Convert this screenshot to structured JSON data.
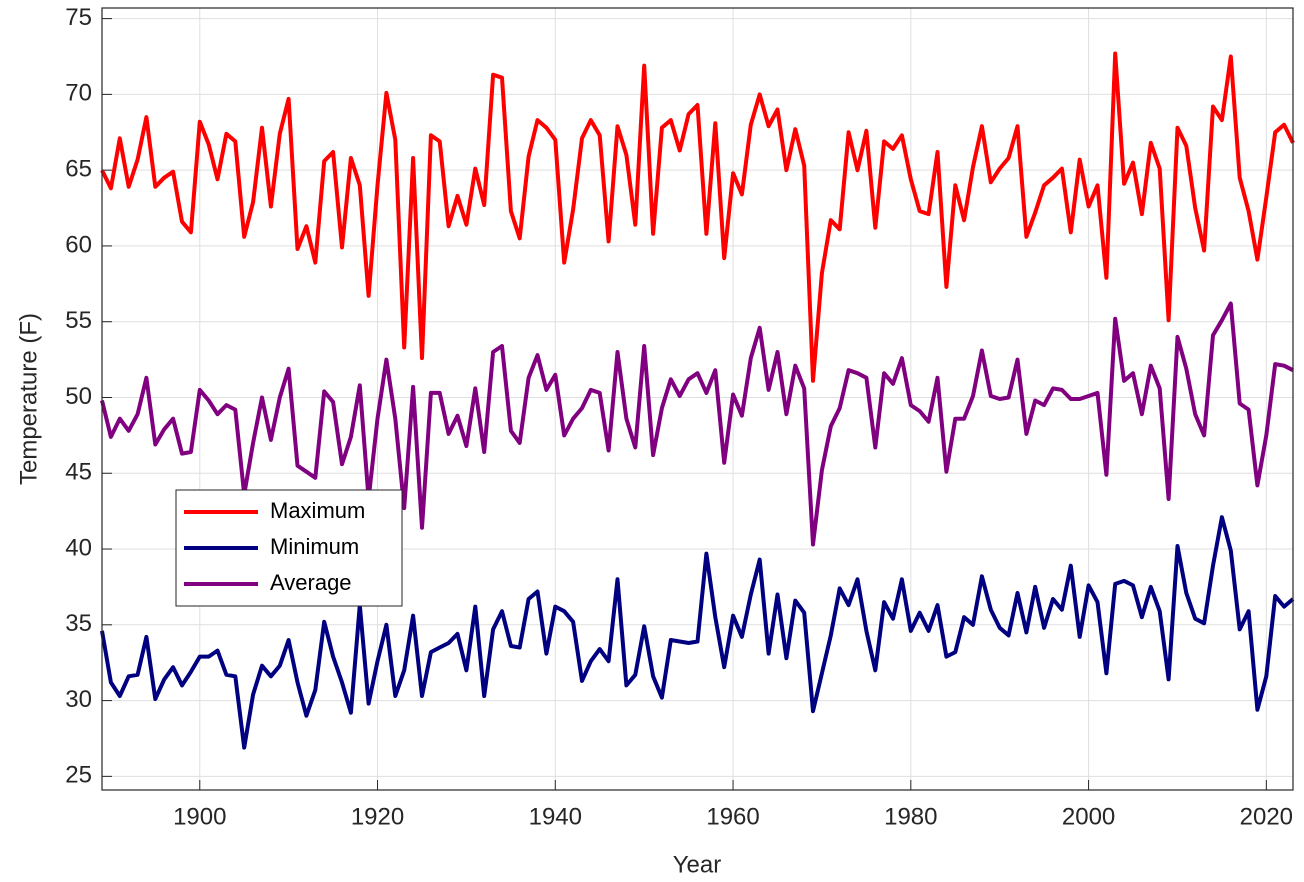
{
  "chart_data": {
    "type": "line",
    "xlabel": "Year",
    "ylabel": "Temperature (F)",
    "x": [
      1889,
      1890,
      1891,
      1892,
      1893,
      1894,
      1895,
      1896,
      1897,
      1898,
      1899,
      1900,
      1901,
      1902,
      1903,
      1904,
      1905,
      1906,
      1907,
      1908,
      1909,
      1910,
      1911,
      1912,
      1913,
      1914,
      1915,
      1916,
      1917,
      1918,
      1919,
      1920,
      1921,
      1922,
      1923,
      1924,
      1925,
      1926,
      1927,
      1928,
      1929,
      1930,
      1931,
      1932,
      1933,
      1934,
      1935,
      1936,
      1937,
      1938,
      1939,
      1940,
      1941,
      1942,
      1943,
      1944,
      1945,
      1946,
      1947,
      1948,
      1949,
      1950,
      1951,
      1952,
      1953,
      1954,
      1955,
      1956,
      1957,
      1958,
      1959,
      1960,
      1961,
      1962,
      1963,
      1964,
      1965,
      1966,
      1967,
      1968,
      1969,
      1970,
      1971,
      1972,
      1973,
      1974,
      1975,
      1976,
      1977,
      1978,
      1979,
      1980,
      1981,
      1982,
      1983,
      1984,
      1985,
      1986,
      1987,
      1988,
      1989,
      1990,
      1991,
      1992,
      1993,
      1994,
      1995,
      1996,
      1997,
      1998,
      1999,
      2000,
      2001,
      2002,
      2003,
      2004,
      2005,
      2006,
      2007,
      2008,
      2009,
      2010,
      2011,
      2012,
      2013,
      2014,
      2015,
      2016,
      2017,
      2018,
      2019,
      2020,
      2021,
      2022,
      2023
    ],
    "series": [
      {
        "name": "Maximum",
        "color": "#ff0000",
        "values": [
          65.0,
          63.8,
          67.1,
          63.9,
          65.7,
          68.5,
          63.9,
          64.5,
          64.9,
          61.6,
          60.9,
          68.2,
          66.7,
          64.4,
          67.4,
          66.9,
          60.6,
          62.9,
          67.8,
          62.6,
          67.4,
          69.7,
          59.8,
          61.3,
          58.9,
          65.6,
          66.2,
          59.9,
          65.8,
          64.0,
          56.7,
          64.0,
          70.1,
          67.0,
          53.3,
          65.8,
          52.6,
          67.3,
          66.9,
          61.3,
          63.3,
          61.4,
          65.1,
          62.7,
          71.3,
          71.1,
          62.3,
          60.5,
          65.9,
          68.3,
          67.8,
          67.0,
          58.9,
          62.4,
          67.1,
          68.3,
          67.3,
          60.3,
          67.9,
          66.0,
          61.4,
          71.9,
          60.8,
          67.8,
          68.3,
          66.3,
          68.7,
          69.3,
          60.8,
          68.1,
          59.2,
          64.8,
          63.4,
          68.0,
          70.0,
          67.9,
          69.0,
          65.0,
          67.7,
          65.3,
          51.1,
          58.2,
          61.7,
          61.1,
          67.5,
          65.0,
          67.6,
          61.2,
          66.9,
          66.4,
          67.3,
          64.4,
          62.3,
          62.1,
          66.2,
          57.3,
          64.0,
          61.7,
          65.2,
          67.9,
          64.2,
          65.1,
          65.8,
          67.9,
          60.6,
          62.2,
          64.0,
          64.5,
          65.1,
          60.9,
          65.7,
          62.6,
          64.0,
          57.9,
          72.7,
          64.1,
          65.5,
          62.1,
          66.8,
          65.1,
          55.1,
          67.8,
          66.6,
          62.5,
          59.7,
          69.2,
          68.3,
          72.5,
          64.5,
          62.3,
          59.1,
          63.2,
          67.5,
          68.0,
          66.8
        ]
      },
      {
        "name": "Minimum",
        "color": "#000080",
        "values": [
          34.6,
          31.2,
          30.3,
          31.6,
          31.7,
          34.2,
          30.1,
          31.4,
          32.2,
          31.0,
          31.9,
          32.9,
          32.9,
          33.3,
          31.7,
          31.6,
          26.9,
          30.4,
          32.3,
          31.6,
          32.3,
          34.0,
          31.2,
          29.0,
          30.7,
          35.2,
          32.9,
          31.2,
          29.2,
          36.3,
          29.8,
          32.6,
          35.0,
          30.3,
          32.0,
          35.6,
          30.3,
          33.2,
          33.5,
          33.8,
          34.4,
          32.0,
          36.2,
          30.3,
          34.7,
          35.9,
          33.6,
          33.5,
          36.7,
          37.2,
          33.1,
          36.2,
          35.9,
          35.2,
          31.3,
          32.6,
          33.4,
          32.6,
          38.0,
          31.0,
          31.7,
          34.9,
          31.6,
          30.2,
          34.0,
          33.9,
          33.8,
          33.9,
          39.7,
          35.5,
          32.2,
          35.6,
          34.2,
          37.0,
          39.3,
          33.1,
          37.0,
          32.8,
          36.6,
          35.8,
          29.3,
          31.8,
          34.3,
          37.4,
          36.3,
          38.0,
          34.6,
          32.0,
          36.5,
          35.4,
          38.0,
          34.6,
          35.8,
          34.6,
          36.3,
          32.9,
          33.2,
          35.5,
          35.0,
          38.2,
          36.0,
          34.8,
          34.3,
          37.1,
          34.5,
          37.5,
          34.8,
          36.7,
          36.0,
          38.9,
          34.2,
          37.6,
          36.5,
          31.8,
          37.7,
          37.9,
          37.6,
          35.5,
          37.5,
          35.9,
          31.4,
          40.2,
          37.1,
          35.4,
          35.1,
          38.9,
          42.1,
          39.9,
          34.7,
          35.9,
          29.4,
          31.6,
          36.9,
          36.2,
          36.7
        ]
      },
      {
        "name": "Average",
        "color": "#800080",
        "values": [
          49.8,
          47.4,
          48.6,
          47.8,
          48.9,
          51.3,
          46.9,
          47.9,
          48.6,
          46.3,
          46.4,
          50.5,
          49.8,
          48.9,
          49.5,
          49.2,
          43.6,
          47.0,
          50.0,
          47.2,
          50.0,
          51.9,
          45.5,
          45.1,
          44.7,
          50.4,
          49.7,
          45.6,
          47.4,
          50.8,
          43.3,
          48.6,
          52.5,
          48.6,
          42.7,
          50.7,
          41.4,
          50.3,
          50.3,
          47.6,
          48.8,
          46.8,
          50.6,
          46.4,
          53.0,
          53.4,
          47.8,
          47.0,
          51.3,
          52.8,
          50.5,
          51.5,
          47.5,
          48.6,
          49.3,
          50.5,
          50.3,
          46.5,
          53.0,
          48.6,
          46.7,
          53.4,
          46.2,
          49.3,
          51.2,
          50.1,
          51.2,
          51.6,
          50.3,
          51.8,
          45.7,
          50.2,
          48.8,
          52.6,
          54.6,
          50.5,
          53.0,
          48.9,
          52.1,
          50.6,
          40.3,
          45.2,
          48.1,
          49.3,
          51.8,
          51.6,
          51.3,
          46.7,
          51.6,
          50.9,
          52.6,
          49.5,
          49.1,
          48.4,
          51.3,
          45.1,
          48.6,
          48.6,
          50.1,
          53.1,
          50.1,
          49.9,
          50.0,
          52.5,
          47.6,
          49.8,
          49.5,
          50.6,
          50.5,
          49.9,
          49.9,
          50.1,
          50.3,
          44.9,
          55.2,
          51.1,
          51.6,
          48.9,
          52.1,
          50.6,
          43.3,
          54.0,
          51.9,
          48.9,
          47.5,
          54.1,
          55.1,
          56.2,
          49.6,
          49.2,
          44.2,
          47.5,
          52.2,
          52.1,
          51.8
        ]
      }
    ],
    "xlim": [
      1889,
      2023
    ],
    "xticks": [
      1900,
      1920,
      1940,
      1960,
      1980,
      2000,
      2020
    ],
    "ylim": [
      24.1,
      75.7
    ],
    "yticks": [
      25,
      30,
      35,
      40,
      45,
      50,
      55,
      60,
      65,
      70,
      75
    ],
    "grid": true,
    "legend": "lower left"
  }
}
